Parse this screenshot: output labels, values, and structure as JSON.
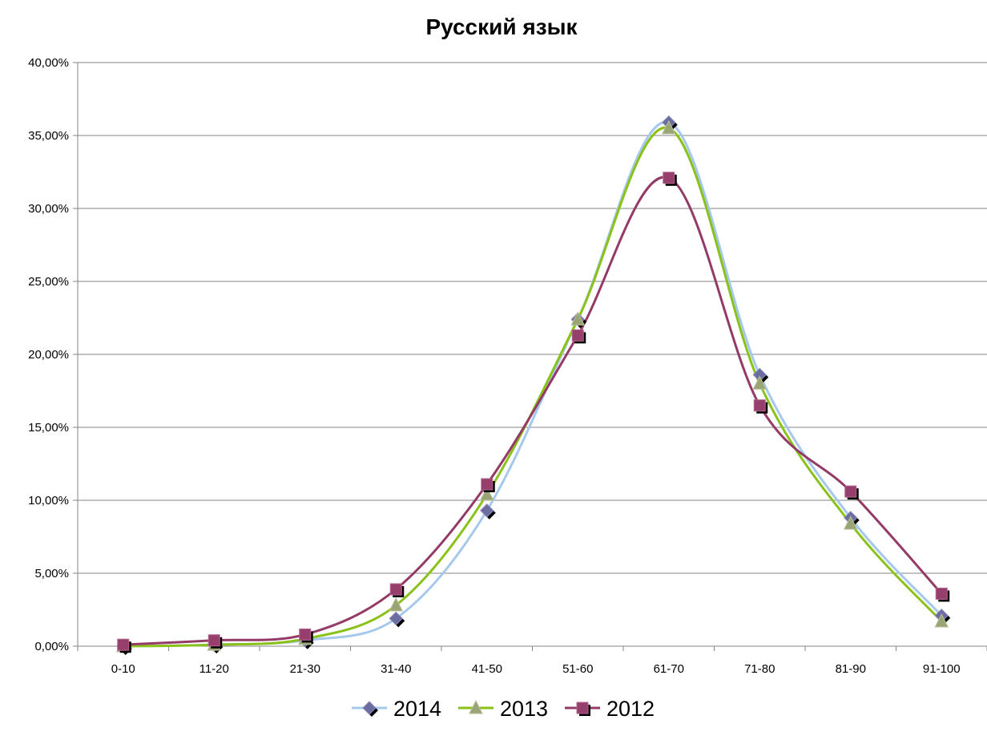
{
  "chart_data": {
    "type": "line",
    "title": "Русский язык",
    "xlabel": "",
    "ylabel": "",
    "categories": [
      "0-10",
      "11-20",
      "21-30",
      "31-40",
      "41-50",
      "51-60",
      "61-70",
      "71-80",
      "81-90",
      "91-100"
    ],
    "ylim": [
      0,
      0.4
    ],
    "yticks": [
      0,
      0.05,
      0.1,
      0.15,
      0.2,
      0.25,
      0.3,
      0.35,
      0.4
    ],
    "ytick_labels": [
      "0,00%",
      "5,00%",
      "10,00%",
      "15,00%",
      "20,00%",
      "25,00%",
      "30,00%",
      "35,00%",
      "40,00%"
    ],
    "grid": true,
    "legend_position": "bottom",
    "series": [
      {
        "name": "2014",
        "marker": "diamond",
        "line_color": "#a6c8ec",
        "marker_color": "#6b6ca0",
        "values": [
          0.0,
          0.001,
          0.004,
          0.019,
          0.093,
          0.224,
          0.359,
          0.186,
          0.088,
          0.021
        ]
      },
      {
        "name": "2013",
        "marker": "triangle",
        "line_color": "#8ac21a",
        "marker_color": "#9aa575",
        "values": [
          0.0,
          0.001,
          0.005,
          0.028,
          0.104,
          0.224,
          0.355,
          0.18,
          0.084,
          0.017
        ]
      },
      {
        "name": "2012",
        "marker": "square",
        "line_color": "#943a66",
        "marker_color": "#973f6c",
        "values": [
          0.001,
          0.004,
          0.008,
          0.039,
          0.111,
          0.213,
          0.321,
          0.165,
          0.106,
          0.036
        ]
      }
    ]
  }
}
